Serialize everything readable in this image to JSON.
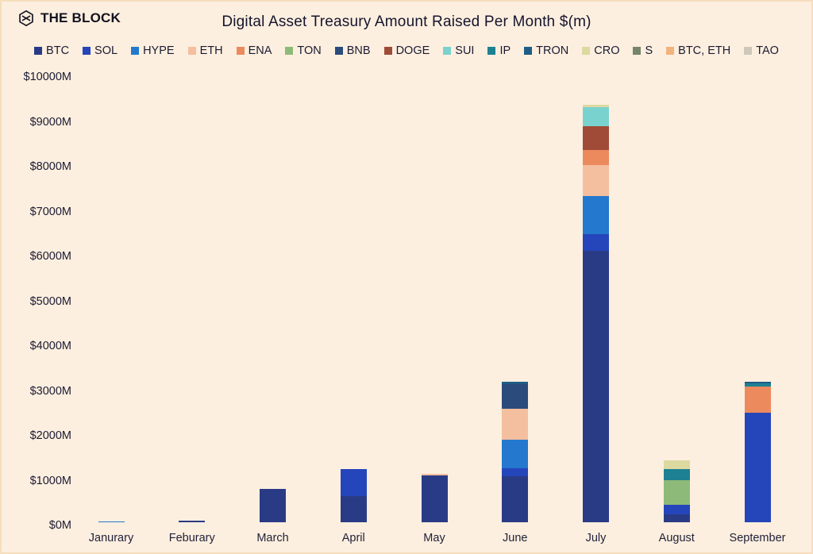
{
  "brand": {
    "name": "THE BLOCK"
  },
  "title": "Digital Asset Treasury Amount Raised Per Month $(m)",
  "colors": {
    "background": "#fcefdf",
    "border": "#f6ddbd",
    "text": "#1b1830"
  },
  "legend": [
    {
      "label": "BTC",
      "color": "#2a3b86"
    },
    {
      "label": "SOL",
      "color": "#2545bb"
    },
    {
      "label": "HYPE",
      "color": "#2478cd"
    },
    {
      "label": "ETH",
      "color": "#f4bf9f"
    },
    {
      "label": "ENA",
      "color": "#ec8a5e"
    },
    {
      "label": "TON",
      "color": "#8eba79"
    },
    {
      "label": "BNB",
      "color": "#2c4b7d"
    },
    {
      "label": "DOGE",
      "color": "#a04b37"
    },
    {
      "label": "SUI",
      "color": "#7ad2cf"
    },
    {
      "label": "IP",
      "color": "#1e8093"
    },
    {
      "label": "TRON",
      "color": "#1f5c86"
    },
    {
      "label": "CRO",
      "color": "#dcd9a1"
    },
    {
      "label": "S",
      "color": "#75856b"
    },
    {
      "label": "BTC, ETH",
      "color": "#f1b47e"
    },
    {
      "label": "TAO",
      "color": "#cdc8bb"
    }
  ],
  "chart_data": {
    "type": "bar",
    "subtype": "stacked",
    "unit": "$M",
    "ylim": [
      0,
      10000
    ],
    "yticks": [
      0,
      1000,
      2000,
      3000,
      4000,
      5000,
      6000,
      7000,
      8000,
      9000,
      10000
    ],
    "ytick_labels": [
      "$0M",
      "$1000M",
      "$2000M",
      "$3000M",
      "$4000M",
      "$5000M",
      "$6000M",
      "$7000M",
      "$8000M",
      "$9000M",
      "$10000M"
    ],
    "grid": false,
    "legend_position": "top",
    "categories": [
      "Janurary",
      "Feburary",
      "March",
      "April",
      "May",
      "June",
      "July",
      "August",
      "September"
    ],
    "series": [
      {
        "name": "BTC",
        "values": [
          0,
          40,
          750,
          590,
          1040,
          1030,
          6050,
          170,
          0
        ]
      },
      {
        "name": "SOL",
        "values": [
          0,
          0,
          0,
          600,
          0,
          180,
          370,
          220,
          2450
        ]
      },
      {
        "name": "HYPE",
        "values": [
          25,
          0,
          0,
          0,
          0,
          640,
          850,
          0,
          0
        ]
      },
      {
        "name": "ETH",
        "values": [
          0,
          0,
          0,
          0,
          45,
          690,
          690,
          0,
          0
        ]
      },
      {
        "name": "ENA",
        "values": [
          0,
          0,
          0,
          0,
          0,
          0,
          350,
          0,
          580
        ]
      },
      {
        "name": "TON",
        "values": [
          0,
          0,
          0,
          0,
          0,
          0,
          0,
          550,
          0
        ]
      },
      {
        "name": "BNB",
        "values": [
          0,
          0,
          0,
          0,
          0,
          540,
          0,
          0,
          0
        ]
      },
      {
        "name": "DOGE",
        "values": [
          0,
          0,
          0,
          0,
          0,
          0,
          530,
          0,
          0
        ]
      },
      {
        "name": "SUI",
        "values": [
          0,
          0,
          0,
          0,
          0,
          0,
          410,
          0,
          0
        ]
      },
      {
        "name": "IP",
        "values": [
          0,
          0,
          0,
          0,
          0,
          0,
          0,
          245,
          60
        ]
      },
      {
        "name": "TRON",
        "values": [
          0,
          0,
          0,
          0,
          0,
          60,
          0,
          0,
          50
        ]
      },
      {
        "name": "CRO",
        "values": [
          0,
          0,
          0,
          0,
          0,
          0,
          60,
          195,
          0
        ]
      },
      {
        "name": "S",
        "values": [
          0,
          0,
          0,
          0,
          0,
          0,
          0,
          0,
          0
        ]
      },
      {
        "name": "BTC, ETH",
        "values": [
          0,
          0,
          0,
          0,
          0,
          0,
          0,
          0,
          0
        ]
      },
      {
        "name": "TAO",
        "values": [
          0,
          0,
          0,
          0,
          0,
          0,
          0,
          0,
          0
        ]
      }
    ],
    "totals": [
      25,
      40,
      750,
      1190,
      1085,
      3140,
      9310,
      1380,
      3140
    ]
  }
}
